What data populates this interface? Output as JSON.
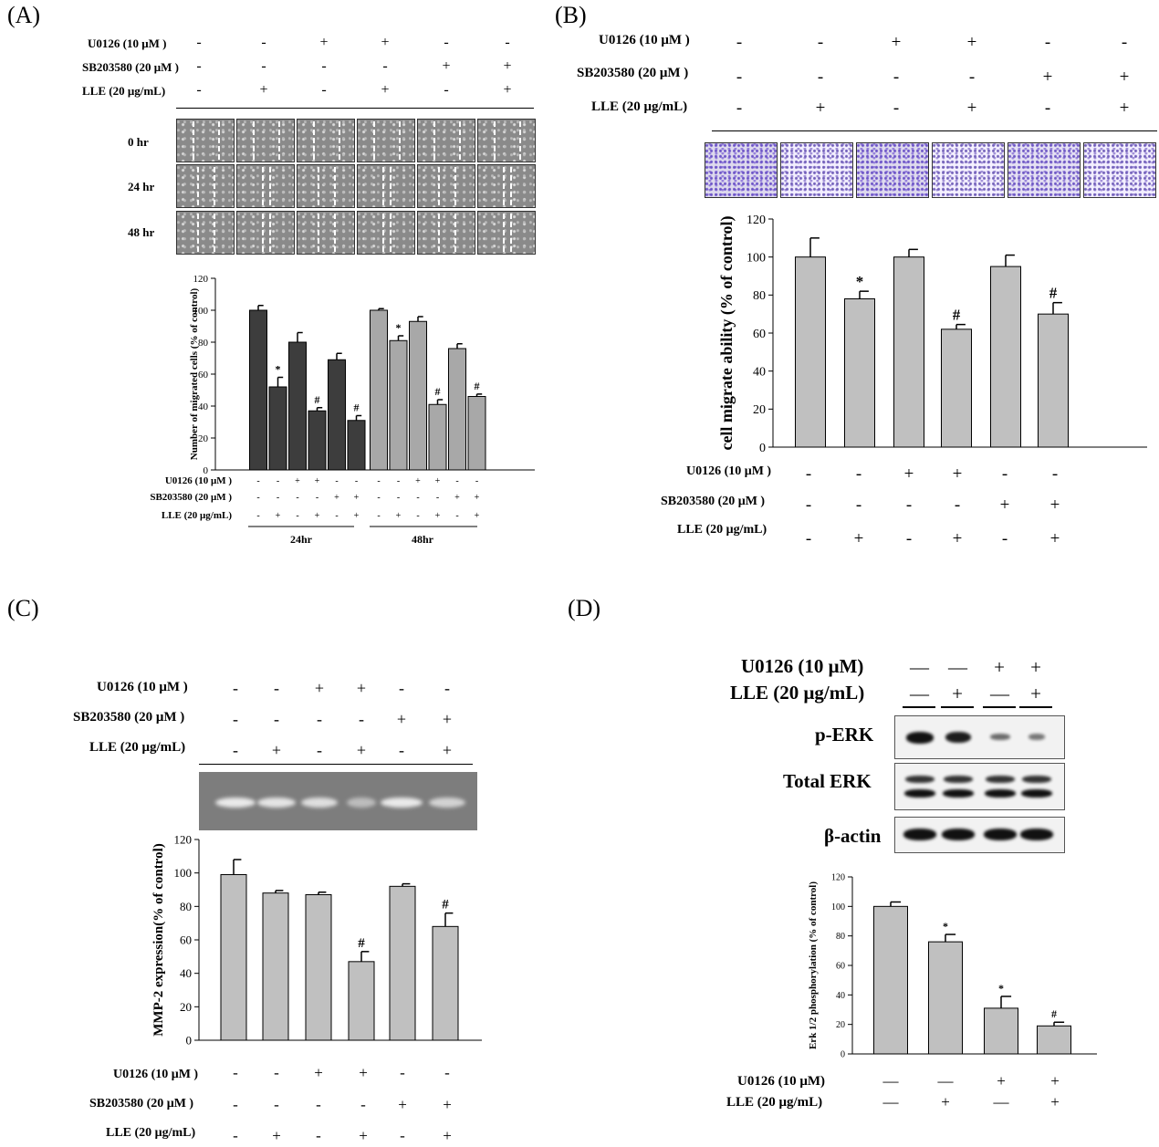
{
  "panels": {
    "A": {
      "label": "(A)"
    },
    "B": {
      "label": "(B)"
    },
    "C": {
      "label": "(C)"
    },
    "D": {
      "label": "(D)"
    }
  },
  "conditions": {
    "u0126": "U0126 (10 μM )",
    "sb": "SB203580 (20 μM )",
    "lle": "LLE (20 μg/mL)",
    "u0126_d": "U0126 (10 μM)",
    "lle_d": "LLE (20 μg/mL)",
    "lle_d_small": "LLE (20 μg/mL)",
    "u0126_d_small": "U0126 (10 μM)"
  },
  "signs": {
    "u0126": [
      "-",
      "-",
      "+",
      "+",
      "-",
      "-"
    ],
    "sb": [
      "-",
      "-",
      "-",
      "-",
      "+",
      "+"
    ],
    "lle": [
      "-",
      "+",
      "-",
      "+",
      "-",
      "+"
    ],
    "d_u0126": [
      "—",
      "—",
      "+",
      "+"
    ],
    "d_lle": [
      "—",
      "+",
      "—",
      "+"
    ]
  },
  "timepoints": [
    "0 hr",
    "24 hr",
    "48 hr"
  ],
  "blot_labels": [
    "p-ERK",
    "Total ERK",
    "β-actin"
  ],
  "chart_data": [
    {
      "panel": "A",
      "type": "bar",
      "ylabel": "Number of migrated cells (% of control)",
      "ylim": [
        0,
        120
      ],
      "yticks": [
        0,
        20,
        40,
        60,
        80,
        100,
        120
      ],
      "groups": [
        "24hr",
        "48hr"
      ],
      "series": [
        {
          "name": "24hr",
          "color": "#3d3d3d",
          "values": [
            100,
            52,
            80,
            37,
            69,
            31
          ],
          "errors": [
            3,
            6,
            6,
            2,
            4,
            3
          ],
          "marks": [
            "",
            "*",
            "",
            "#",
            "",
            "#"
          ]
        },
        {
          "name": "48hr",
          "color": "#a8a8a8",
          "values": [
            100,
            81,
            93,
            41,
            76,
            46
          ],
          "errors": [
            1,
            3,
            3,
            3,
            3,
            1.5
          ],
          "marks": [
            "",
            "*",
            "",
            "#",
            "",
            "#"
          ]
        }
      ]
    },
    {
      "panel": "B",
      "type": "bar",
      "ylabel": "cell migrate ability (% of control)",
      "ylim": [
        0,
        120
      ],
      "yticks": [
        0,
        20,
        40,
        60,
        80,
        100,
        120
      ],
      "values": [
        100,
        78,
        100,
        62,
        95,
        70
      ],
      "errors": [
        10,
        4,
        4,
        2.5,
        6,
        6
      ],
      "marks": [
        "",
        "*",
        "",
        "#",
        "",
        "#"
      ]
    },
    {
      "panel": "C",
      "type": "bar",
      "ylabel": "MMP-2 expression(% of control)",
      "ylim": [
        0,
        120
      ],
      "yticks": [
        0,
        20,
        40,
        60,
        80,
        100,
        120
      ],
      "values": [
        99,
        88,
        87,
        47,
        92,
        68
      ],
      "errors": [
        9,
        1.5,
        1.5,
        6,
        1.5,
        8
      ],
      "marks": [
        "",
        "",
        "",
        "#",
        "",
        "#"
      ]
    },
    {
      "panel": "D",
      "type": "bar",
      "ylabel": "Erk 1/2 phosphorylation (% of control)",
      "ylim": [
        0,
        120
      ],
      "yticks": [
        0,
        20,
        40,
        60,
        80,
        100,
        120
      ],
      "values": [
        100,
        76,
        31,
        19
      ],
      "errors": [
        3,
        5,
        8,
        2.5
      ],
      "marks": [
        "",
        "*",
        "*",
        "#"
      ]
    }
  ]
}
